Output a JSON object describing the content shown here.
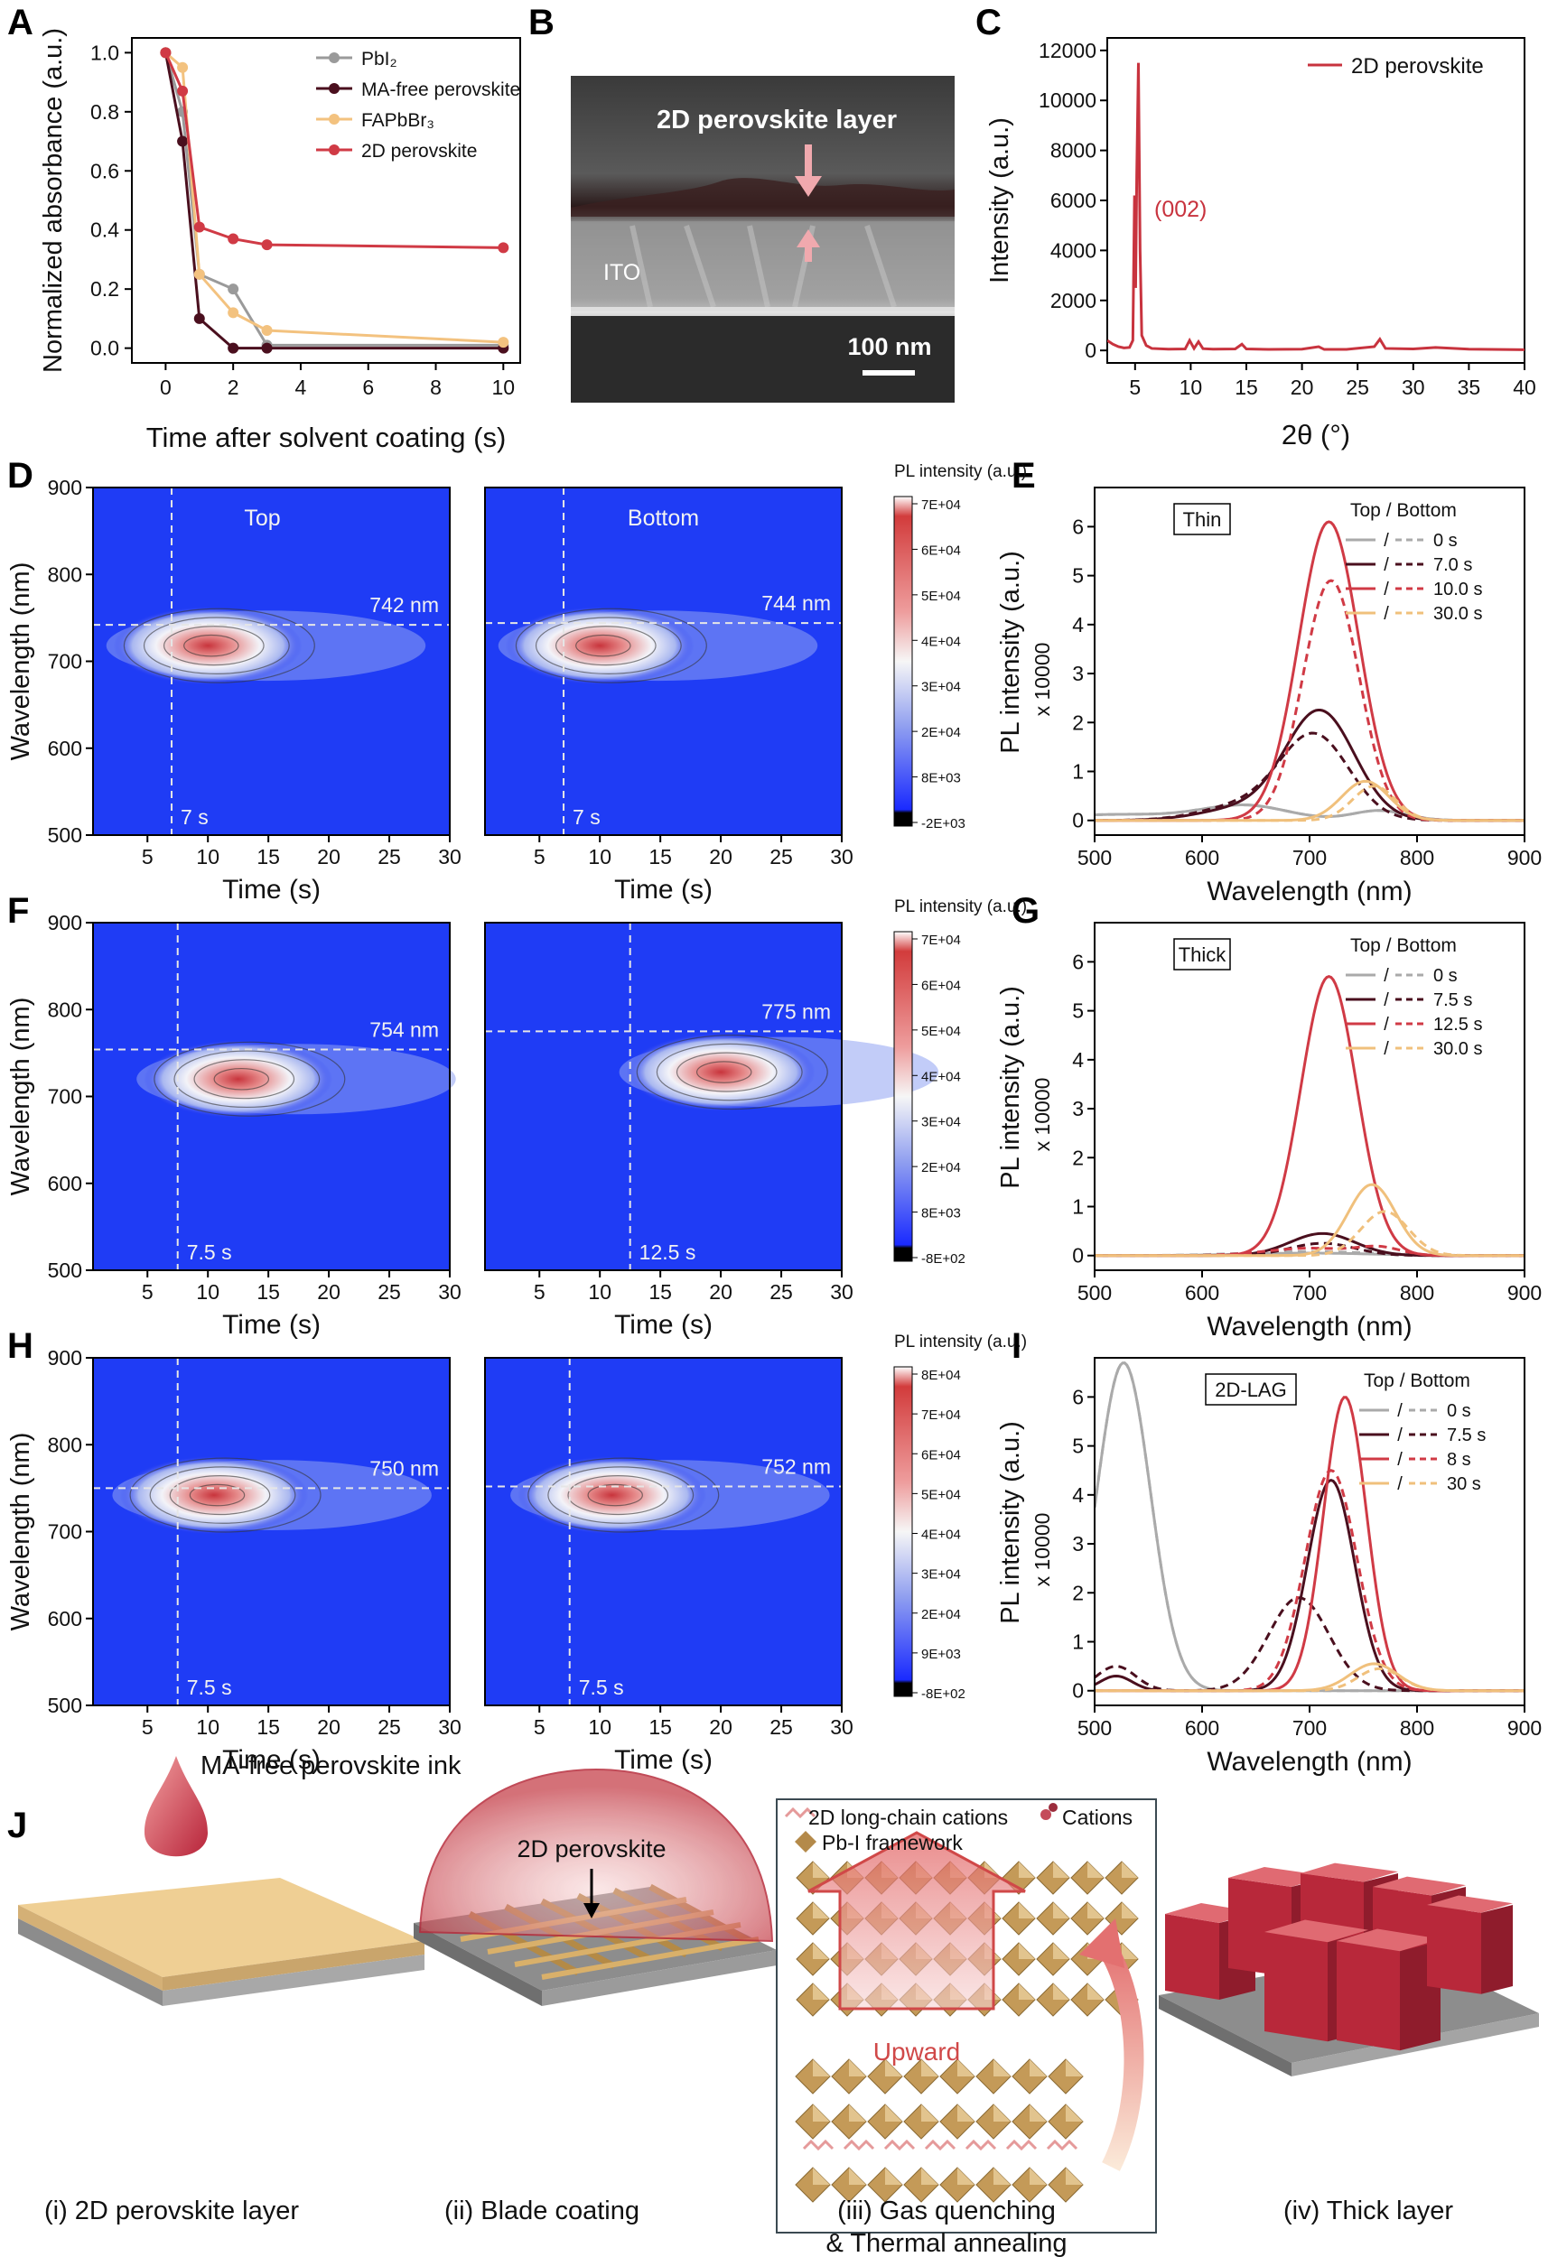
{
  "panel_letters": {
    "a": "A",
    "b": "B",
    "c": "C",
    "d": "D",
    "e": "E",
    "f": "F",
    "g": "G",
    "h": "H",
    "i": "I",
    "j": "J"
  },
  "panelA": {
    "xlabel": "Time after solvent coating (s)",
    "ylabel": "Normalized absorbance (a.u.)",
    "legend": [
      "PbI₂",
      "MA-free perovskite",
      "FAPbBr₃",
      "2D perovskite"
    ]
  },
  "panelB": {
    "layer_label": "2D perovskite layer",
    "ito_label": "ITO",
    "scale_label": "100 nm"
  },
  "panelC": {
    "xlabel": "2θ (°)",
    "ylabel": "Intensity (a.u.)",
    "legend": "2D perovskite",
    "peak_label": "(002)"
  },
  "maps": {
    "xlabel": "Time (s)",
    "ylabel": "Wavelength (nm)",
    "cbar_title": "PL intensity (a.u.)",
    "top_label": "Top",
    "bottom_label": "Bottom",
    "D": {
      "left_nm": "742 nm",
      "right_nm": "744 nm",
      "left_t": "7 s",
      "right_t": "7 s",
      "cbar": [
        "7E+04",
        "6E+04",
        "5E+04",
        "4E+04",
        "3E+04",
        "2E+04",
        "8E+03",
        "-2E+03"
      ]
    },
    "F": {
      "left_nm": "754 nm",
      "right_nm": "775 nm",
      "left_t": "7.5 s",
      "right_t": "12.5 s",
      "cbar": [
        "7E+04",
        "6E+04",
        "5E+04",
        "4E+04",
        "3E+04",
        "2E+04",
        "8E+03",
        "-8E+02"
      ]
    },
    "H": {
      "left_nm": "750 nm",
      "right_nm": "752 nm",
      "left_t": "7.5 s",
      "right_t": "7.5 s",
      "cbar": [
        "8E+04",
        "7E+04",
        "6E+04",
        "5E+04",
        "4E+04",
        "3E+04",
        "2E+04",
        "9E+03",
        "-8E+02"
      ]
    }
  },
  "spectra": {
    "xlabel": "Wavelength (nm)",
    "ylabel": "PL intensity (a.u.)",
    "yfactor": "x 10000",
    "legend_title": "Top / Bottom",
    "E": {
      "tag": "Thin",
      "times": [
        "0 s",
        "7.0 s",
        "10.0 s",
        "30.0 s"
      ]
    },
    "G": {
      "tag": "Thick",
      "times": [
        "0 s",
        "7.5 s",
        "12.5 s",
        "30.0 s"
      ]
    },
    "I": {
      "tag": "2D-LAG",
      "times": [
        "0 s",
        "7.5 s",
        "8 s",
        "30 s"
      ]
    }
  },
  "panelJ": {
    "ink_label": "MA-free perovskite ink",
    "dome_label": "2D perovskite",
    "legend_cations_2d": "2D long-chain cations",
    "legend_cations": "Cations",
    "legend_framework": "Pb-I framework",
    "arrow_label": "Upward",
    "cap1": "(i) 2D perovskite layer",
    "cap2": "(ii) Blade coating",
    "cap3a": "(iii) Gas quenching",
    "cap3b": "& Thermal annealing",
    "cap4": "(iv) Thick layer"
  },
  "chart_data": [
    {
      "type": "line",
      "panel": "A",
      "xlabel": "Time after solvent coating (s)",
      "ylabel": "Normalized absorbance (a.u.)",
      "xlim": [
        -1,
        10.5
      ],
      "ylim": [
        -0.05,
        1.05
      ],
      "xticks": [
        0,
        2,
        4,
        6,
        8,
        10
      ],
      "yticks": [
        0.0,
        0.2,
        0.4,
        0.6,
        0.8,
        1.0
      ],
      "colors": [
        "#9a9a9a",
        "#4a0f1e",
        "#f3c27f",
        "#d03a45"
      ],
      "series": [
        {
          "name": "PbI₂",
          "x": [
            0,
            0.5,
            1,
            2,
            3,
            10
          ],
          "y": [
            1.0,
            0.8,
            0.25,
            0.2,
            0.01,
            0.01
          ]
        },
        {
          "name": "MA-free perovskite",
          "x": [
            0,
            0.5,
            1,
            2,
            3,
            10
          ],
          "y": [
            1.0,
            0.7,
            0.1,
            0.0,
            0.0,
            0.0
          ]
        },
        {
          "name": "FAPbBr₃",
          "x": [
            0,
            0.5,
            1,
            2,
            3,
            10
          ],
          "y": [
            1.0,
            0.95,
            0.25,
            0.12,
            0.06,
            0.02
          ]
        },
        {
          "name": "2D perovskite",
          "x": [
            0,
            0.5,
            1,
            2,
            3,
            10
          ],
          "y": [
            1.0,
            0.87,
            0.41,
            0.37,
            0.35,
            0.34
          ]
        }
      ]
    },
    {
      "type": "line",
      "panel": "C",
      "xlabel": "2θ (°)",
      "ylabel": "Intensity (a.u.)",
      "xlim": [
        2.5,
        40
      ],
      "ylim": [
        -500,
        12500
      ],
      "xticks": [
        5,
        10,
        15,
        20,
        25,
        30,
        35,
        40
      ],
      "yticks": [
        0,
        2000,
        4000,
        6000,
        8000,
        10000,
        12000
      ],
      "colors": [
        "#c8333e"
      ],
      "series": [
        {
          "name": "2D perovskite",
          "x": [
            2.5,
            3,
            3.5,
            4,
            4.5,
            4.8,
            4.95,
            5.05,
            5.15,
            5.3,
            5.45,
            5.6,
            6,
            6.5,
            8,
            9.5,
            9.9,
            10.3,
            10.7,
            11.1,
            12,
            14,
            14.6,
            15,
            17,
            20,
            21.5,
            22,
            24,
            26.5,
            27,
            27.5,
            30,
            32,
            35,
            40
          ],
          "y": [
            400,
            250,
            150,
            100,
            120,
            400,
            6200,
            2500,
            7000,
            11500,
            4000,
            600,
            200,
            80,
            50,
            60,
            400,
            80,
            350,
            70,
            50,
            60,
            250,
            60,
            40,
            50,
            150,
            40,
            40,
            150,
            450,
            80,
            60,
            120,
            50,
            30
          ]
        }
      ]
    },
    {
      "type": "heatmap",
      "panel": "D",
      "xlabel": "Time (s)",
      "ylabel": "Wavelength (nm)",
      "xlim": [
        0.5,
        30
      ],
      "ylim": [
        500,
        900
      ],
      "xticks": [
        5,
        10,
        15,
        20,
        25,
        30
      ],
      "yticks": [
        500,
        600,
        700,
        800,
        900
      ],
      "series": [
        {
          "name": "Top",
          "peak_time": 10,
          "peak_wavelength": 718,
          "peak_intensity": 60000,
          "line_wavelength": 742,
          "line_time": 7
        },
        {
          "name": "Bottom",
          "peak_time": 10,
          "peak_wavelength": 718,
          "peak_intensity": 50000,
          "line_wavelength": 744,
          "line_time": 7
        }
      ]
    },
    {
      "type": "heatmap",
      "panel": "F",
      "xlabel": "Time (s)",
      "ylabel": "Wavelength (nm)",
      "xlim": [
        0.5,
        30
      ],
      "ylim": [
        500,
        900
      ],
      "xticks": [
        5,
        10,
        15,
        20,
        25,
        30
      ],
      "yticks": [
        500,
        600,
        700,
        800,
        900
      ],
      "series": [
        {
          "name": "Top",
          "peak_time": 12.5,
          "peak_wavelength": 720,
          "peak_intensity": 57000,
          "line_wavelength": 754,
          "line_time": 7.5
        },
        {
          "name": "Bottom",
          "peak_time": 20,
          "peak_wavelength": 728,
          "peak_intensity": 55000,
          "line_wavelength": 775,
          "line_time": 12.5
        }
      ]
    },
    {
      "type": "heatmap",
      "panel": "H",
      "xlabel": "Time (s)",
      "ylabel": "Wavelength (nm)",
      "xlim": [
        0.5,
        30
      ],
      "ylim": [
        500,
        900
      ],
      "xticks": [
        5,
        10,
        15,
        20,
        25,
        30
      ],
      "yticks": [
        500,
        600,
        700,
        800,
        900
      ],
      "series": [
        {
          "name": "Top",
          "peak_time": 10.5,
          "peak_wavelength": 742,
          "peak_intensity": 60000,
          "line_wavelength": 750,
          "line_time": 7.5
        },
        {
          "name": "Bottom",
          "peak_time": 11,
          "peak_wavelength": 742,
          "peak_intensity": 58000,
          "line_wavelength": 752,
          "line_time": 7.5
        }
      ]
    },
    {
      "type": "line",
      "panel": "E",
      "xlabel": "Wavelength (nm)",
      "ylabel": "PL intensity (a.u.) x 10000",
      "xlim": [
        500,
        900
      ],
      "ylim": [
        -0.3,
        6.8
      ],
      "xticks": [
        500,
        600,
        700,
        800,
        900
      ],
      "yticks": [
        0,
        1,
        2,
        3,
        4,
        5,
        6
      ],
      "colors": [
        "#aaaaaa",
        "#4a0f1e",
        "#d03a45",
        "#f0c07c"
      ],
      "series": [
        {
          "name": "0 s Top",
          "peaks": [
            [
              520,
              0.12,
              60
            ],
            [
              640,
              0.3,
              40
            ],
            [
              765,
              0.2,
              25
            ]
          ],
          "dashed": false
        },
        {
          "name": "0 s Bottom",
          "peaks": [
            [
              520,
              0.12,
              60
            ],
            [
              640,
              0.3,
              40
            ],
            [
              765,
              0.2,
              25
            ]
          ],
          "dashed": true
        },
        {
          "name": "7.0 s Top",
          "peaks": [
            [
              710,
              2.2,
              32
            ],
            [
              640,
              0.25,
              40
            ]
          ],
          "dashed": false
        },
        {
          "name": "7.0 s Bottom",
          "peaks": [
            [
              705,
              1.7,
              32
            ],
            [
              640,
              0.3,
              40
            ]
          ],
          "dashed": true
        },
        {
          "name": "10.0 s Top",
          "peaks": [
            [
              718,
              6.1,
              28
            ]
          ],
          "dashed": false
        },
        {
          "name": "10.0 s Bottom",
          "peaks": [
            [
              720,
              4.9,
              26
            ]
          ],
          "dashed": true
        },
        {
          "name": "30.0 s Top",
          "peaks": [
            [
              752,
              0.8,
              22
            ]
          ],
          "dashed": false
        },
        {
          "name": "30.0 s Bottom",
          "peaks": [
            [
              760,
              0.7,
              20
            ]
          ],
          "dashed": true
        }
      ]
    },
    {
      "type": "line",
      "panel": "G",
      "xlabel": "Wavelength (nm)",
      "ylabel": "PL intensity (a.u.) x 10000",
      "xlim": [
        500,
        900
      ],
      "ylim": [
        -0.3,
        6.8
      ],
      "xticks": [
        500,
        600,
        700,
        800,
        900
      ],
      "yticks": [
        0,
        1,
        2,
        3,
        4,
        5,
        6
      ],
      "colors": [
        "#aaaaaa",
        "#4a0f1e",
        "#d03a45",
        "#f0c07c"
      ],
      "series": [
        {
          "name": "0 s Top",
          "peaks": [
            [
              700,
              0.05,
              60
            ]
          ],
          "dashed": false
        },
        {
          "name": "0 s Bottom",
          "peaks": [
            [
              700,
              0.08,
              60
            ]
          ],
          "dashed": true
        },
        {
          "name": "7.5 s Top",
          "peaks": [
            [
              712,
              0.45,
              30
            ]
          ],
          "dashed": false
        },
        {
          "name": "7.5 s Bottom",
          "peaks": [
            [
              712,
              0.25,
              30
            ]
          ],
          "dashed": true
        },
        {
          "name": "12.5 s Top",
          "peaks": [
            [
              718,
              5.7,
              26
            ]
          ],
          "dashed": false
        },
        {
          "name": "12.5 s Bottom",
          "peaks": [
            [
              700,
              0.15,
              40
            ],
            [
              765,
              0.15,
              20
            ]
          ],
          "dashed": true
        },
        {
          "name": "30.0 s Top",
          "peaks": [
            [
              758,
              1.45,
              22
            ]
          ],
          "dashed": false
        },
        {
          "name": "30.0 s Bottom",
          "peaks": [
            [
              770,
              0.9,
              22
            ]
          ],
          "dashed": true
        }
      ]
    },
    {
      "type": "line",
      "panel": "I",
      "xlabel": "Wavelength (nm)",
      "ylabel": "PL intensity (a.u.) x 10000",
      "xlim": [
        500,
        900
      ],
      "ylim": [
        -0.3,
        6.8
      ],
      "xticks": [
        500,
        600,
        700,
        800,
        900
      ],
      "yticks": [
        0,
        1,
        2,
        3,
        4,
        5,
        6
      ],
      "colors": [
        "#aaaaaa",
        "#4a0f1e",
        "#d03a45",
        "#f0c07c"
      ],
      "series": [
        {
          "name": "0 s Top",
          "peaks": [
            [
              527,
              6.7,
              25
            ]
          ],
          "dashed": false
        },
        {
          "name": "0 s Bottom",
          "peaks": [
            [
              527,
              6.7,
              25
            ]
          ],
          "dashed": true
        },
        {
          "name": "7.5 s Top",
          "peaks": [
            [
              720,
              4.3,
              22
            ],
            [
              520,
              0.3,
              15
            ]
          ],
          "dashed": false
        },
        {
          "name": "7.5 s Bottom",
          "peaks": [
            [
              690,
              1.9,
              28
            ],
            [
              520,
              0.5,
              18
            ]
          ],
          "dashed": true
        },
        {
          "name": "8 s Top",
          "peaks": [
            [
              733,
              6.0,
              20
            ]
          ],
          "dashed": false
        },
        {
          "name": "8 s Bottom",
          "peaks": [
            [
              720,
              4.5,
              24
            ]
          ],
          "dashed": true
        },
        {
          "name": "30 s Top",
          "peaks": [
            [
              760,
              0.55,
              22
            ]
          ],
          "dashed": false
        },
        {
          "name": "30 s Bottom",
          "peaks": [
            [
              765,
              0.45,
              20
            ]
          ],
          "dashed": true
        }
      ]
    }
  ]
}
